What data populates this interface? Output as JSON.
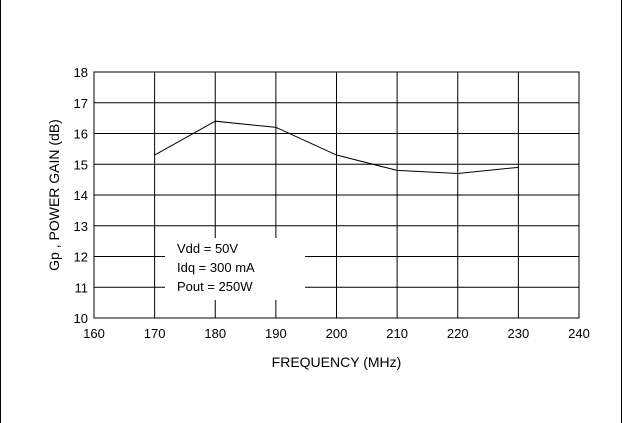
{
  "chart_data": {
    "type": "line",
    "xlabel": "FREQUENCY (MHz)",
    "ylabel": "Gp , POWER GAIN (dB)",
    "xlim": [
      160,
      240
    ],
    "ylim": [
      10,
      18
    ],
    "xticks": [
      160,
      170,
      180,
      190,
      200,
      210,
      220,
      230,
      240
    ],
    "yticks": [
      10,
      11,
      12,
      13,
      14,
      15,
      16,
      17,
      18
    ],
    "grid": true,
    "series": [
      {
        "x": [
          170,
          180,
          190,
          200,
          210,
          220,
          230
        ],
        "y": [
          15.3,
          16.4,
          16.2,
          15.3,
          14.8,
          14.7,
          14.9
        ]
      }
    ],
    "annotations": [
      "Vdd = 50V",
      "Idq = 300 mA",
      "Pout = 250W"
    ]
  }
}
